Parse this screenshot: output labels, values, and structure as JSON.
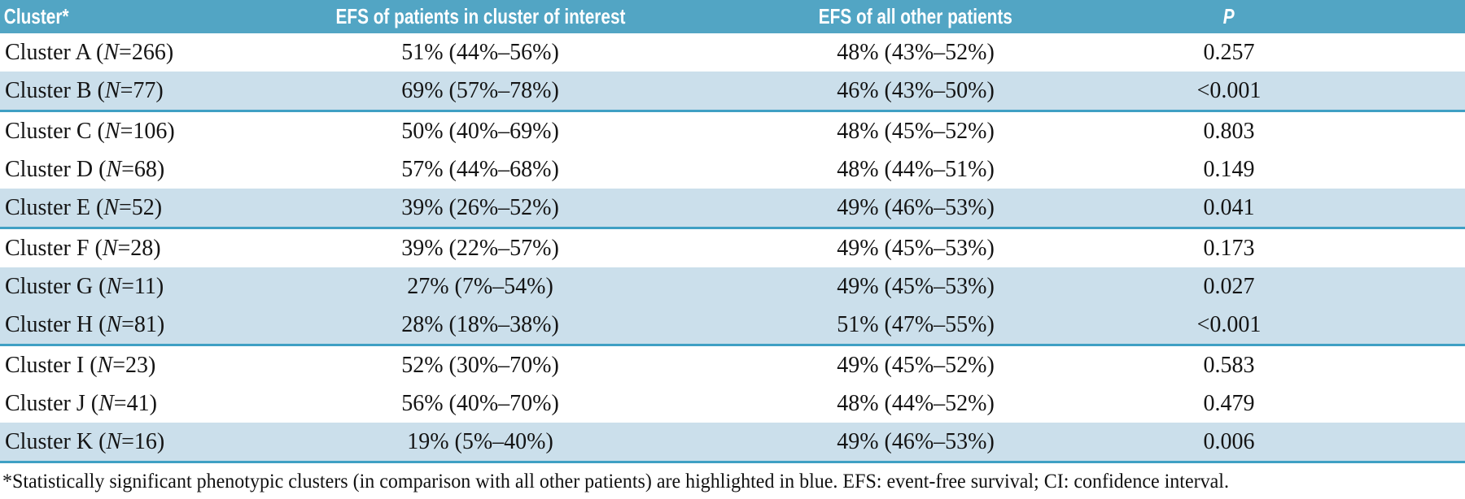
{
  "table": {
    "n_symbol": "N",
    "columns": [
      "Cluster*",
      "EFS of patients in cluster of interest",
      "EFS of all other patients",
      "P"
    ],
    "rows": [
      {
        "name": "Cluster A",
        "n": "266",
        "efs_cluster": "51% (44%–56%)",
        "efs_other": "48% (43%–52%)",
        "p": "0.257",
        "highlighted": false,
        "group_end": false
      },
      {
        "name": "Cluster B",
        "n": "77",
        "efs_cluster": "69% (57%–78%)",
        "efs_other": "46% (43%–50%)",
        "p": "<0.001",
        "highlighted": true,
        "group_end": true
      },
      {
        "name": "Cluster C",
        "n": "106",
        "efs_cluster": "50% (40%–69%)",
        "efs_other": "48% (45%–52%)",
        "p": "0.803",
        "highlighted": false,
        "group_end": false
      },
      {
        "name": "Cluster D",
        "n": "68",
        "efs_cluster": "57% (44%–68%)",
        "efs_other": "48% (44%–51%)",
        "p": "0.149",
        "highlighted": false,
        "group_end": false
      },
      {
        "name": "Cluster E",
        "n": "52",
        "efs_cluster": "39% (26%–52%)",
        "efs_other": "49% (46%–53%)",
        "p": "0.041",
        "highlighted": true,
        "group_end": true
      },
      {
        "name": "Cluster F",
        "n": "28",
        "efs_cluster": "39% (22%–57%)",
        "efs_other": "49% (45%–53%)",
        "p": "0.173",
        "highlighted": false,
        "group_end": false
      },
      {
        "name": "Cluster G",
        "n": "11",
        "efs_cluster": "27% (7%–54%)",
        "efs_other": "49% (45%–53%)",
        "p": "0.027",
        "highlighted": true,
        "group_end": false
      },
      {
        "name": "Cluster H",
        "n": "81",
        "efs_cluster": "28% (18%–38%)",
        "efs_other": "51% (47%–55%)",
        "p": "<0.001",
        "highlighted": true,
        "group_end": true
      },
      {
        "name": "Cluster I",
        "n": "23",
        "efs_cluster": "52% (30%–70%)",
        "efs_other": "49% (45%–52%)",
        "p": "0.583",
        "highlighted": false,
        "group_end": false
      },
      {
        "name": "Cluster J",
        "n": "41",
        "efs_cluster": "56% (40%–70%)",
        "efs_other": "48% (44%–52%)",
        "p": "0.479",
        "highlighted": false,
        "group_end": false
      },
      {
        "name": "Cluster K",
        "n": "16",
        "efs_cluster": "19% (5%–40%)",
        "efs_other": "49% (46%–53%)",
        "p": "0.006",
        "highlighted": true,
        "group_end": true
      }
    ]
  },
  "footnote": {
    "text": "*Statistically significant phenotypic clusters (in comparison with all other patients) are highlighted in blue. EFS: event-free survival; CI: confidence interval."
  },
  "colors": {
    "header_bg": "#52a5c4",
    "highlight_bg": "#cbdfeb",
    "separator": "#3fa0c4",
    "header_text": "#ffffff",
    "body_text": "#141414"
  }
}
